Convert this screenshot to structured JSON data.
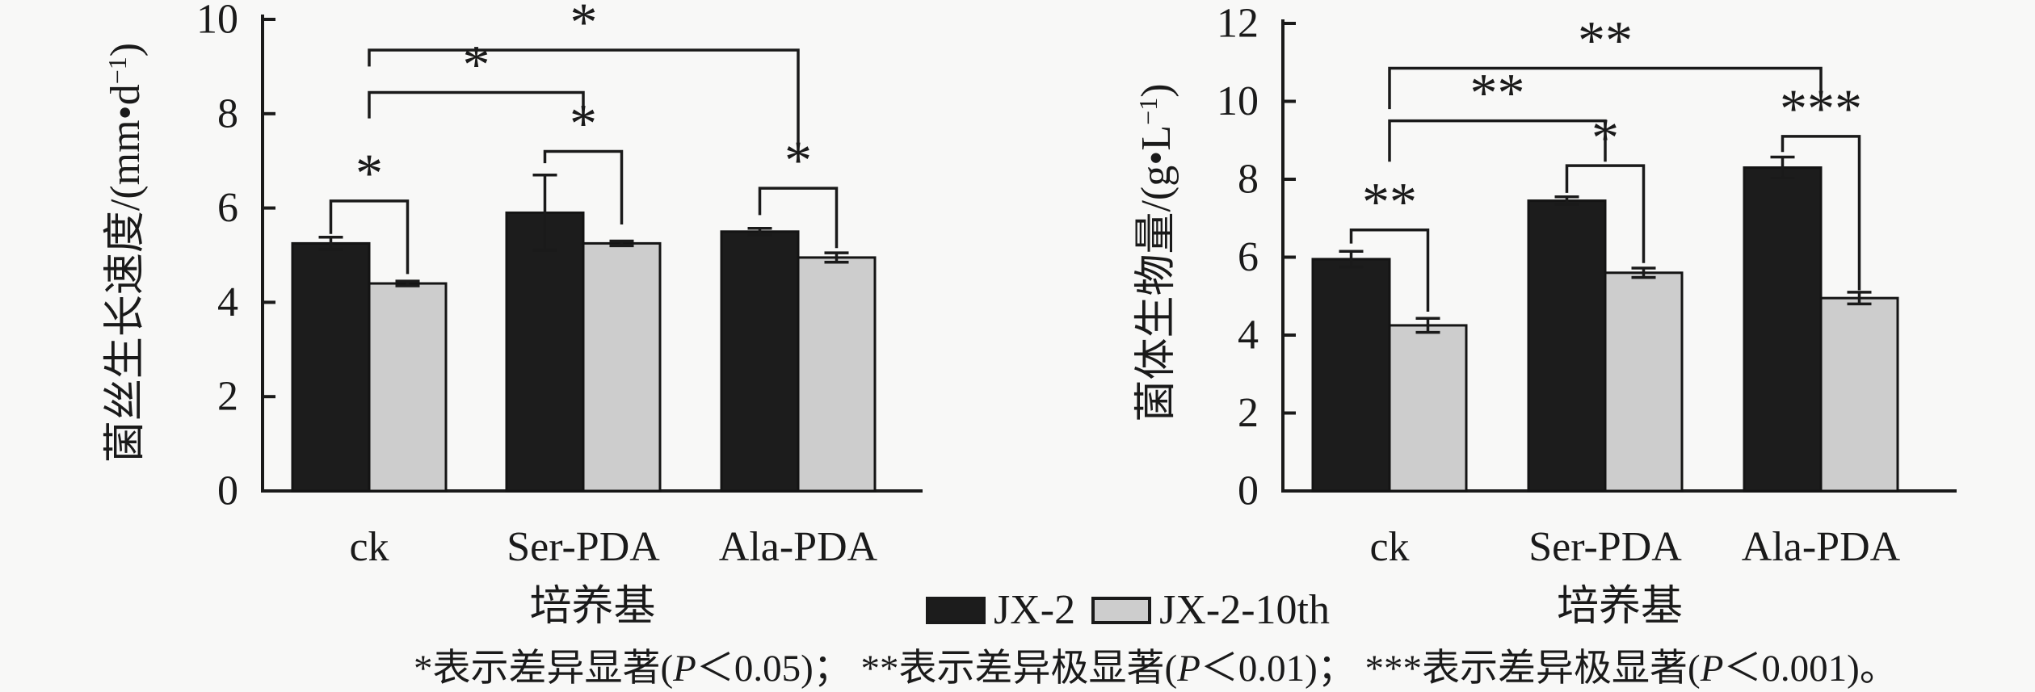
{
  "colors": {
    "background": "#f8f8f7",
    "bar_jx2": "#1c1c1c",
    "bar_jx2_10th": "#cdcdcd",
    "line": "#1a1a1a"
  },
  "legend": {
    "items": [
      {
        "label": "JX-2",
        "color": "#1c1c1c"
      },
      {
        "label": "JX-2-10th",
        "color": "#cdcdcd"
      }
    ]
  },
  "footnote": {
    "segments": [
      {
        "t": "*表示差异显著("
      },
      {
        "t": "P",
        "i": 1
      },
      {
        "t": "＜0.05)； **表示差异极显著("
      },
      {
        "t": "P",
        "i": 1
      },
      {
        "t": "＜0.01)； ***表示差异极显著("
      },
      {
        "t": "P",
        "i": 1
      },
      {
        "t": "＜0.001)。"
      }
    ]
  },
  "chart_data": [
    {
      "id": "hyphal-growth-rate",
      "type": "bar",
      "title": "",
      "xlabel": "培养基",
      "ylabel": {
        "pre": "菌丝生长速度/(mm•d",
        "sup": "−1",
        "post": ")"
      },
      "categories": [
        "ck",
        "Ser-PDA",
        "Ala-PDA"
      ],
      "series": [
        {
          "name": "JX-2",
          "values": [
            5.25,
            5.9,
            5.5
          ],
          "errors": [
            0.13,
            0.8,
            0.07
          ]
        },
        {
          "name": "JX-2-10th",
          "values": [
            4.4,
            5.25,
            4.95
          ],
          "errors": [
            0.05,
            0.05,
            0.1
          ]
        }
      ],
      "ylim": [
        0,
        10
      ],
      "ytick_step": 2,
      "yticks": [
        "0",
        "2",
        "4",
        "6",
        "8",
        "10"
      ],
      "grid": false,
      "legend_position": "bottom-center-shared",
      "significance": [
        {
          "a": {
            "g": 0,
            "p": "b0"
          },
          "b": {
            "g": 0,
            "p": "b1"
          },
          "y": 6.15,
          "e1": 5.45,
          "e2": 4.6,
          "label": "*"
        },
        {
          "a": {
            "g": 1,
            "p": "b0"
          },
          "b": {
            "g": 1,
            "p": "b1"
          },
          "y": 7.2,
          "e1": 6.95,
          "e2": 5.65,
          "label": "*"
        },
        {
          "a": {
            "g": 2,
            "p": "b0"
          },
          "b": {
            "g": 2,
            "p": "b1"
          },
          "y": 6.42,
          "e1": 5.85,
          "e2": 5.15,
          "label": "*"
        },
        {
          "a": {
            "g": 0,
            "p": "m"
          },
          "b": {
            "g": 1,
            "p": "m"
          },
          "y": 8.45,
          "e1": 7.9,
          "e2": 7.75,
          "label": "*"
        },
        {
          "a": {
            "g": 0,
            "p": "m"
          },
          "b": {
            "g": 2,
            "p": "m"
          },
          "y": 9.35,
          "e1": 9.0,
          "e2": 7.05,
          "label": "*"
        }
      ]
    },
    {
      "id": "mycelial-biomass",
      "type": "bar",
      "title": "",
      "xlabel": "培养基",
      "ylabel": {
        "pre": "菌体生物量/(g•L",
        "sup": "−1",
        "post": ")"
      },
      "categories": [
        "ck",
        "Ser-PDA",
        "Ala-PDA"
      ],
      "series": [
        {
          "name": "JX-2",
          "values": [
            5.95,
            7.45,
            8.3
          ],
          "errors": [
            0.2,
            0.1,
            0.27
          ]
        },
        {
          "name": "JX-2-10th",
          "values": [
            4.25,
            5.6,
            4.95
          ],
          "errors": [
            0.18,
            0.12,
            0.15
          ]
        }
      ],
      "ylim": [
        0,
        12
      ],
      "ytick_step": 2,
      "yticks": [
        "0",
        "2",
        "4",
        "6",
        "8",
        "10",
        "12"
      ],
      "grid": false,
      "legend_position": "bottom-center-shared",
      "significance": [
        {
          "a": {
            "g": 0,
            "p": "b0"
          },
          "b": {
            "g": 0,
            "p": "b1"
          },
          "y": 6.7,
          "e1": 6.35,
          "e2": 4.6,
          "label": "**"
        },
        {
          "a": {
            "g": 1,
            "p": "b0"
          },
          "b": {
            "g": 1,
            "p": "b1"
          },
          "y": 8.35,
          "e1": 7.65,
          "e2": 5.85,
          "label": "*"
        },
        {
          "a": {
            "g": 2,
            "p": "b0"
          },
          "b": {
            "g": 2,
            "p": "b1"
          },
          "y": 9.1,
          "e1": 8.7,
          "e2": 5.15,
          "label": "***"
        },
        {
          "a": {
            "g": 0,
            "p": "m"
          },
          "b": {
            "g": 1,
            "p": "m"
          },
          "y": 9.5,
          "e1": 8.45,
          "e2": 8.45,
          "label": "**"
        },
        {
          "a": {
            "g": 0,
            "p": "m"
          },
          "b": {
            "g": 2,
            "p": "m"
          },
          "y": 10.85,
          "e1": 9.8,
          "e2": 10.1,
          "label": "**"
        }
      ]
    }
  ]
}
